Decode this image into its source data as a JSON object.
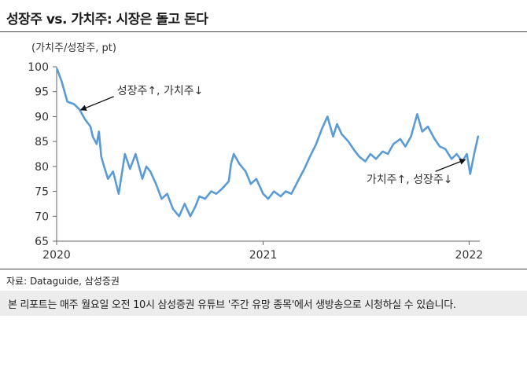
{
  "title": "성장주 vs. 가치주: 시장은 돌고 돈다",
  "source": "자료: Dataguide, 삼성증권",
  "notice": "본 리포트는 매주 월요일 오전 10시 삼성증권 유튜브 '주간 유망 종목'에서 생방송으로 시청하실 수 있습니다.",
  "colors": {
    "line": "#5b9bd5",
    "axis": "#666666",
    "text": "#333333"
  },
  "chart_data": {
    "type": "line",
    "ylabel": "(가치주/성장주, pt)",
    "xlabel": "",
    "ylim": [
      65,
      100
    ],
    "yticks": [
      65,
      70,
      75,
      80,
      85,
      90,
      95,
      100
    ],
    "xlim": [
      "2020-01-01",
      "2022-01-20"
    ],
    "xticks": [
      {
        "date": "2020-01-01",
        "label": "2020"
      },
      {
        "date": "2021-01-01",
        "label": "2021"
      },
      {
        "date": "2022-01-01",
        "label": "2022"
      }
    ],
    "grid": false,
    "legend": "none",
    "series": [
      {
        "x": [
          "2020-01-02",
          "2020-01-10",
          "2020-01-20",
          "2020-02-01",
          "2020-02-10",
          "2020-02-20",
          "2020-03-01",
          "2020-03-05",
          "2020-03-12",
          "2020-03-16",
          "2020-03-20",
          "2020-03-25",
          "2020-04-01",
          "2020-04-10",
          "2020-04-20",
          "2020-05-01",
          "2020-05-10",
          "2020-05-20",
          "2020-06-01",
          "2020-06-08",
          "2020-06-15",
          "2020-06-25",
          "2020-07-05",
          "2020-07-15",
          "2020-07-25",
          "2020-08-05",
          "2020-08-15",
          "2020-08-25",
          "2020-09-03",
          "2020-09-10",
          "2020-09-20",
          "2020-10-01",
          "2020-10-10",
          "2020-10-20",
          "2020-11-01",
          "2020-11-05",
          "2020-11-10",
          "2020-11-20",
          "2020-12-01",
          "2020-12-10",
          "2020-12-20",
          "2021-01-01",
          "2021-01-10",
          "2021-01-20",
          "2021-02-01",
          "2021-02-10",
          "2021-02-20",
          "2021-03-01",
          "2021-03-08",
          "2021-03-15",
          "2021-03-25",
          "2021-04-05",
          "2021-04-15",
          "2021-04-25",
          "2021-05-05",
          "2021-05-12",
          "2021-05-20",
          "2021-06-01",
          "2021-06-10",
          "2021-06-20",
          "2021-07-01",
          "2021-07-10",
          "2021-07-20",
          "2021-08-01",
          "2021-08-10",
          "2021-08-20",
          "2021-09-01",
          "2021-09-10",
          "2021-09-20",
          "2021-10-01",
          "2021-10-10",
          "2021-10-20",
          "2021-11-01",
          "2021-11-10",
          "2021-11-20",
          "2021-12-01",
          "2021-12-10",
          "2021-12-20",
          "2021-12-28",
          "2022-01-03",
          "2022-01-10",
          "2022-01-17"
        ],
        "values": [
          99.5,
          97.0,
          93.0,
          92.5,
          91.5,
          89.5,
          88.0,
          86.0,
          84.5,
          87.0,
          82.0,
          80.0,
          77.5,
          79.0,
          74.5,
          82.5,
          79.5,
          82.5,
          77.5,
          80.0,
          79.0,
          76.5,
          73.5,
          74.5,
          71.5,
          70.0,
          72.5,
          70.0,
          72.0,
          74.0,
          73.5,
          75.0,
          74.5,
          75.5,
          77.0,
          80.5,
          82.5,
          80.5,
          79.0,
          76.5,
          77.5,
          74.5,
          73.5,
          75.0,
          74.0,
          75.0,
          74.5,
          76.5,
          78.0,
          79.5,
          82.0,
          84.5,
          87.5,
          90.0,
          86.0,
          88.5,
          86.5,
          85.0,
          83.5,
          82.0,
          81.0,
          82.5,
          81.5,
          83.0,
          82.5,
          84.5,
          85.5,
          84.0,
          86.0,
          90.5,
          87.0,
          88.0,
          85.5,
          84.0,
          83.5,
          81.5,
          82.5,
          81.0,
          82.5,
          78.5,
          82.5,
          86.0
        ]
      }
    ],
    "annotations": [
      {
        "text": "성장주↑, 가치주↓",
        "x": "2020-02-10",
        "y": 91.5,
        "text_position": "upper-right"
      },
      {
        "text": "가치주↑, 성장주↓",
        "x": "2021-12-28",
        "y": 81.2,
        "text_position": "lower-left"
      }
    ]
  }
}
